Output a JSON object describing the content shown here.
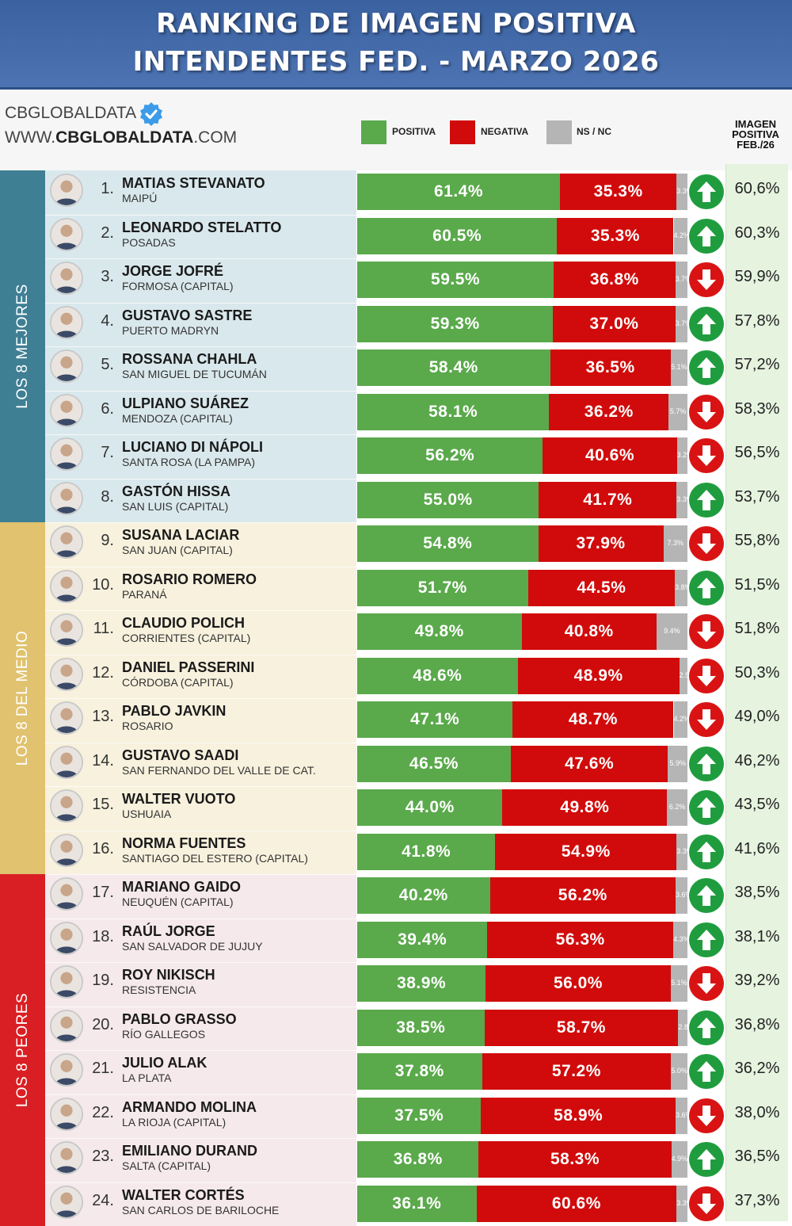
{
  "header": {
    "line1": "RANKING DE IMAGEN POSITIVA",
    "line2": "INTENDENTES FED. - MARZO 2026"
  },
  "brand": {
    "name": "CBGLOBALDATA",
    "url_prefix": "WWW.",
    "url_main": "CBGLOBALDATA",
    "url_suffix": ".COM"
  },
  "legend": {
    "positiva": "POSITIVA",
    "negativa": "NEGATIVA",
    "nsnc": "NS / NC"
  },
  "prev_header": {
    "l1": "IMAGEN",
    "l2": "POSITIVA",
    "l3": "FEB./26"
  },
  "groups": [
    {
      "label": "LOS 8 MEJORES",
      "color": "#3f7f94",
      "bg": "#d9e8ec"
    },
    {
      "label": "LOS 8 DEL MEDIO",
      "color": "#e0c26f",
      "bg": "#f7f1dd"
    },
    {
      "label": "LOS 8 PEORES",
      "color": "#d91f24",
      "bg": "#f5e9eb"
    }
  ],
  "colors": {
    "positiva": "#5aa94b",
    "negativa": "#d10b0b",
    "nsnc": "#b5b5b5",
    "up": "#1f9d3e",
    "down": "#d91313"
  },
  "chart_data": {
    "type": "bar",
    "stacked": true,
    "orientation": "horizontal",
    "rows": [
      {
        "rank": "1.",
        "name": "MATIAS STEVANATO",
        "city": "MAIPÚ",
        "positiva": 61.4,
        "negativa": 35.3,
        "nsnc": 3.3,
        "positiva_label": "61.4%",
        "negativa_label": "35.3%",
        "nsnc_label": "3.3%",
        "trend": "up",
        "prev": "60,6%"
      },
      {
        "rank": "2.",
        "name": "LEONARDO STELATTO",
        "city": "POSADAS",
        "positiva": 60.5,
        "negativa": 35.3,
        "nsnc": 4.2,
        "positiva_label": "60.5%",
        "negativa_label": "35.3%",
        "nsnc_label": "4.2%",
        "trend": "up",
        "prev": "60,3%"
      },
      {
        "rank": "3.",
        "name": "JORGE JOFRÉ",
        "city": "FORMOSA (CAPITAL)",
        "positiva": 59.5,
        "negativa": 36.8,
        "nsnc": 3.7,
        "positiva_label": "59.5%",
        "negativa_label": "36.8%",
        "nsnc_label": "3.7%",
        "trend": "down",
        "prev": "59,9%"
      },
      {
        "rank": "4.",
        "name": "GUSTAVO SASTRE",
        "city": "PUERTO MADRYN",
        "positiva": 59.3,
        "negativa": 37.0,
        "nsnc": 3.7,
        "positiva_label": "59.3%",
        "negativa_label": "37.0%",
        "nsnc_label": "3.7%",
        "trend": "up",
        "prev": "57,8%"
      },
      {
        "rank": "5.",
        "name": "ROSSANA CHAHLA",
        "city": "SAN MIGUEL DE TUCUMÁN",
        "positiva": 58.4,
        "negativa": 36.5,
        "nsnc": 5.1,
        "positiva_label": "58.4%",
        "negativa_label": "36.5%",
        "nsnc_label": "5.1%",
        "trend": "up",
        "prev": "57,2%"
      },
      {
        "rank": "6.",
        "name": "ULPIANO SUÁREZ",
        "city": "MENDOZA (CAPITAL)",
        "positiva": 58.1,
        "negativa": 36.2,
        "nsnc": 5.7,
        "positiva_label": "58.1%",
        "negativa_label": "36.2%",
        "nsnc_label": "5.7%",
        "trend": "down",
        "prev": "58,3%"
      },
      {
        "rank": "7.",
        "name": "LUCIANO DI NÁPOLI",
        "city": "SANTA ROSA (LA PAMPA)",
        "positiva": 56.2,
        "negativa": 40.6,
        "nsnc": 3.2,
        "positiva_label": "56.2%",
        "negativa_label": "40.6%",
        "nsnc_label": "3.2%",
        "trend": "down",
        "prev": "56,5%"
      },
      {
        "rank": "8.",
        "name": "GASTÓN HISSA",
        "city": "SAN LUIS (CAPITAL)",
        "positiva": 55.0,
        "negativa": 41.7,
        "nsnc": 3.3,
        "positiva_label": "55.0%",
        "negativa_label": "41.7%",
        "nsnc_label": "3.3%",
        "trend": "up",
        "prev": "53,7%"
      },
      {
        "rank": "9.",
        "name": "SUSANA LACIAR",
        "city": "SAN JUAN (CAPITAL)",
        "positiva": 54.8,
        "negativa": 37.9,
        "nsnc": 7.3,
        "positiva_label": "54.8%",
        "negativa_label": "37.9%",
        "nsnc_label": "7.3%",
        "trend": "down",
        "prev": "55,8%"
      },
      {
        "rank": "10.",
        "name": "ROSARIO ROMERO",
        "city": "PARANÁ",
        "positiva": 51.7,
        "negativa": 44.5,
        "nsnc": 3.8,
        "positiva_label": "51.7%",
        "negativa_label": "44.5%",
        "nsnc_label": "3.8%",
        "trend": "up",
        "prev": "51,5%"
      },
      {
        "rank": "11.",
        "name": "CLAUDIO POLICH",
        "city": "CORRIENTES (CAPITAL)",
        "positiva": 49.8,
        "negativa": 40.8,
        "nsnc": 9.4,
        "positiva_label": "49.8%",
        "negativa_label": "40.8%",
        "nsnc_label": "9.4%",
        "trend": "down",
        "prev": "51,8%"
      },
      {
        "rank": "12.",
        "name": "DANIEL PASSERINI",
        "city": "CÓRDOBA (CAPITAL)",
        "positiva": 48.6,
        "negativa": 48.9,
        "nsnc": 2.5,
        "positiva_label": "48.6%",
        "negativa_label": "48.9%",
        "nsnc_label": "2.5%",
        "trend": "down",
        "prev": "50,3%"
      },
      {
        "rank": "13.",
        "name": "PABLO JAVKIN",
        "city": "ROSARIO",
        "positiva": 47.1,
        "negativa": 48.7,
        "nsnc": 4.2,
        "positiva_label": "47.1%",
        "negativa_label": "48.7%",
        "nsnc_label": "4.2%",
        "trend": "down",
        "prev": "49,0%"
      },
      {
        "rank": "14.",
        "name": "GUSTAVO SAADI",
        "city": "SAN FERNANDO DEL VALLE DE CAT.",
        "positiva": 46.5,
        "negativa": 47.6,
        "nsnc": 5.9,
        "positiva_label": "46.5%",
        "negativa_label": "47.6%",
        "nsnc_label": "5.9%",
        "trend": "up",
        "prev": "46,2%"
      },
      {
        "rank": "15.",
        "name": "WALTER VUOTO",
        "city": "USHUAIA",
        "positiva": 44.0,
        "negativa": 49.8,
        "nsnc": 6.2,
        "positiva_label": "44.0%",
        "negativa_label": "49.8%",
        "nsnc_label": "6.2%",
        "trend": "up",
        "prev": "43,5%"
      },
      {
        "rank": "16.",
        "name": "NORMA FUENTES",
        "city": "SANTIAGO DEL ESTERO (CAPITAL)",
        "positiva": 41.8,
        "negativa": 54.9,
        "nsnc": 3.3,
        "positiva_label": "41.8%",
        "negativa_label": "54.9%",
        "nsnc_label": "3.3%",
        "trend": "up",
        "prev": "41,6%"
      },
      {
        "rank": "17.",
        "name": "MARIANO GAIDO",
        "city": "NEUQUÉN (CAPITAL)",
        "positiva": 40.2,
        "negativa": 56.2,
        "nsnc": 3.6,
        "positiva_label": "40.2%",
        "negativa_label": "56.2%",
        "nsnc_label": "3.6%",
        "trend": "up",
        "prev": "38,5%"
      },
      {
        "rank": "18.",
        "name": "RAÚL JORGE",
        "city": "SAN SALVADOR DE JUJUY",
        "positiva": 39.4,
        "negativa": 56.3,
        "nsnc": 4.3,
        "positiva_label": "39.4%",
        "negativa_label": "56.3%",
        "nsnc_label": "4.3%",
        "trend": "up",
        "prev": "38,1%"
      },
      {
        "rank": "19.",
        "name": "ROY NIKISCH",
        "city": "RESISTENCIA",
        "positiva": 38.9,
        "negativa": 56.0,
        "nsnc": 5.1,
        "positiva_label": "38.9%",
        "negativa_label": "56.0%",
        "nsnc_label": "5.1%",
        "trend": "down",
        "prev": "39,2%"
      },
      {
        "rank": "20.",
        "name": "PABLO GRASSO",
        "city": "RÍO GALLEGOS",
        "positiva": 38.5,
        "negativa": 58.7,
        "nsnc": 2.8,
        "positiva_label": "38.5%",
        "negativa_label": "58.7%",
        "nsnc_label": "2.8%",
        "trend": "up",
        "prev": "36,8%"
      },
      {
        "rank": "21.",
        "name": "JULIO ALAK",
        "city": "LA PLATA",
        "positiva": 37.8,
        "negativa": 57.2,
        "nsnc": 5.0,
        "positiva_label": "37.8%",
        "negativa_label": "57.2%",
        "nsnc_label": "5.0%",
        "trend": "up",
        "prev": "36,2%"
      },
      {
        "rank": "22.",
        "name": "ARMANDO MOLINA",
        "city": "LA RIOJA (CAPITAL)",
        "positiva": 37.5,
        "negativa": 58.9,
        "nsnc": 3.6,
        "positiva_label": "37.5%",
        "negativa_label": "58.9%",
        "nsnc_label": "3.6%",
        "trend": "down",
        "prev": "38,0%"
      },
      {
        "rank": "23.",
        "name": "EMILIANO DURAND",
        "city": "SALTA (CAPITAL)",
        "positiva": 36.8,
        "negativa": 58.3,
        "nsnc": 4.9,
        "positiva_label": "36.8%",
        "negativa_label": "58.3%",
        "nsnc_label": "4.9%",
        "trend": "up",
        "prev": "36,5%"
      },
      {
        "rank": "24.",
        "name": "WALTER CORTÉS",
        "city": "SAN CARLOS DE BARILOCHE",
        "positiva": 36.1,
        "negativa": 60.6,
        "nsnc": 3.3,
        "positiva_label": "36.1%",
        "negativa_label": "60.6%",
        "nsnc_label": "3.3%",
        "trend": "down",
        "prev": "37,3%"
      }
    ]
  }
}
